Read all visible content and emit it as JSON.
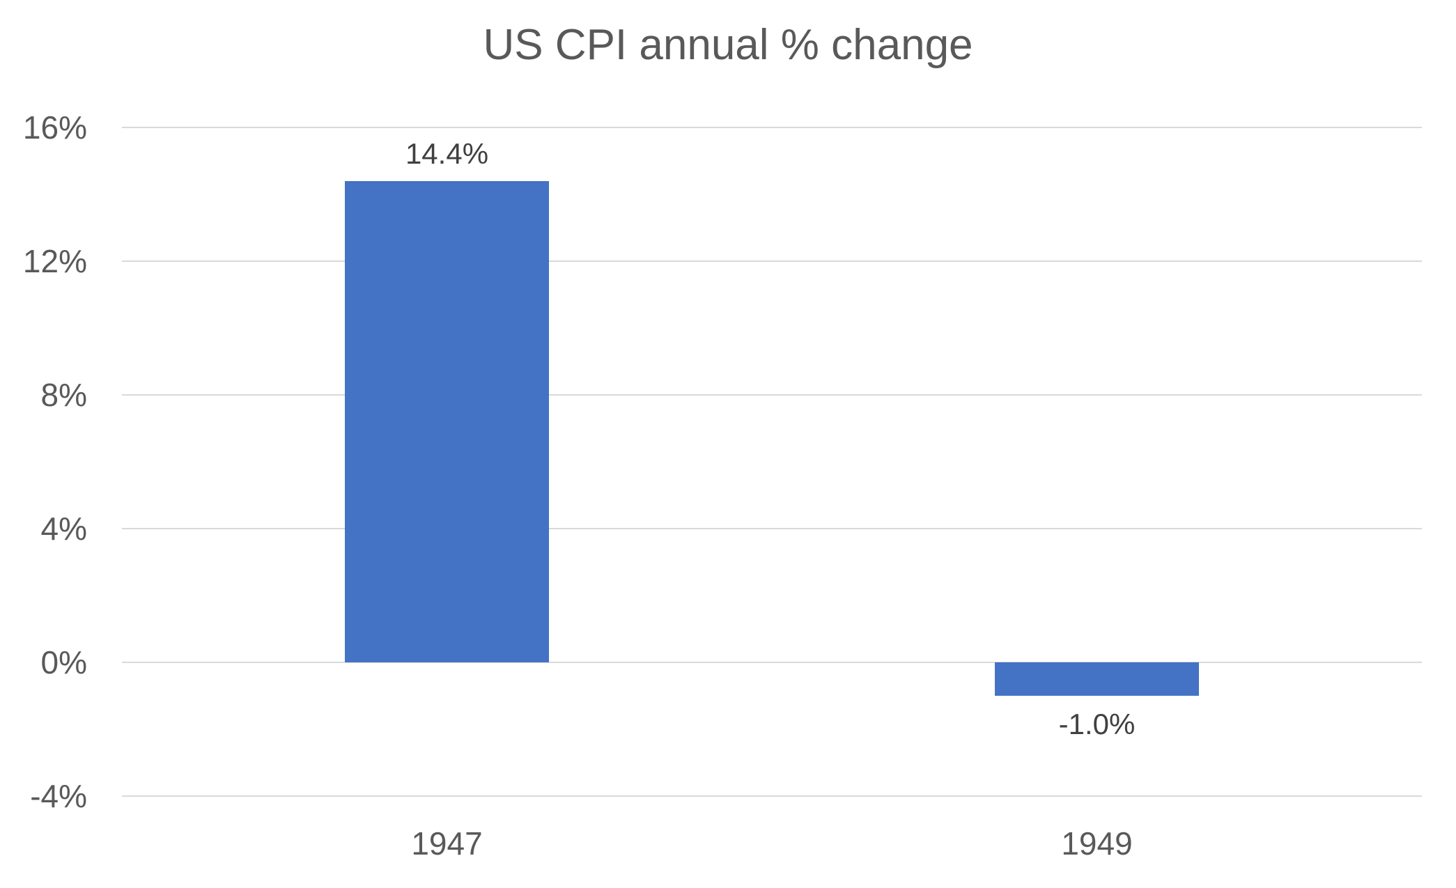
{
  "title": "US CPI annual % change",
  "colors": {
    "bar": "#4472C4",
    "title_text": "#595959",
    "axis_text": "#595959",
    "data_label_text": "#404040",
    "gridline": "#D9D9D9",
    "background": "#FFFFFF"
  },
  "chart_data": {
    "type": "bar",
    "title": "US CPI annual % change",
    "categories": [
      "1947",
      "1949"
    ],
    "values": [
      14.4,
      -1.0
    ],
    "data_labels": [
      "14.4%",
      "-1.0%"
    ],
    "xlabel": "",
    "ylabel": "",
    "ylim": [
      -4,
      16
    ],
    "yticks": [
      16,
      12,
      8,
      4,
      0,
      -4
    ],
    "ytick_labels": [
      "16%",
      "12%",
      "8%",
      "4%",
      "0%",
      "-4%"
    ],
    "grid": true,
    "legend": false,
    "bar_color": "#4472C4"
  }
}
